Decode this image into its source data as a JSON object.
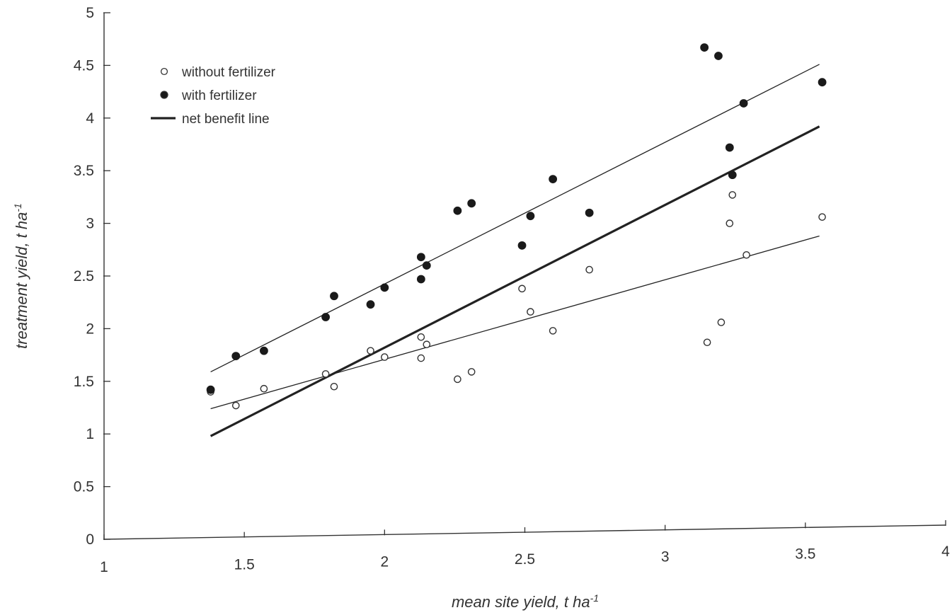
{
  "chart_data": {
    "type": "scatter",
    "xlabel": "mean site yield, t ha",
    "xlabel_sup": "-1",
    "ylabel": "treatment yield, t ha",
    "ylabel_sup": "-1",
    "xlim": [
      1,
      4
    ],
    "ylim": [
      0,
      5
    ],
    "xticks": [
      "1",
      "1.5",
      "2",
      "2.5",
      "3",
      "3.5",
      "4"
    ],
    "yticks": [
      "0",
      "0.5",
      "1",
      "1.5",
      "2",
      "2.5",
      "3",
      "3.5",
      "4",
      "4.5",
      "5"
    ],
    "grid": false,
    "legend_position": "top-left",
    "series": [
      {
        "name": "without fertilizer",
        "marker": "open-circle",
        "color": "#333333",
        "points": [
          [
            1.38,
            1.4
          ],
          [
            1.47,
            1.27
          ],
          [
            1.57,
            1.43
          ],
          [
            1.79,
            1.57
          ],
          [
            1.82,
            1.45
          ],
          [
            1.95,
            1.79
          ],
          [
            2.0,
            1.73
          ],
          [
            2.13,
            1.72
          ],
          [
            2.13,
            1.92
          ],
          [
            2.15,
            1.85
          ],
          [
            2.26,
            1.52
          ],
          [
            2.31,
            1.59
          ],
          [
            2.49,
            2.38
          ],
          [
            2.52,
            2.16
          ],
          [
            2.6,
            1.98
          ],
          [
            2.73,
            2.56
          ],
          [
            3.15,
            1.87
          ],
          [
            3.2,
            2.06
          ],
          [
            3.23,
            3.0
          ],
          [
            3.24,
            3.27
          ],
          [
            3.29,
            2.7
          ],
          [
            3.56,
            3.06
          ]
        ]
      },
      {
        "name": "with fertilizer",
        "marker": "filled-circle",
        "color": "#1a1a1a",
        "points": [
          [
            1.38,
            1.42
          ],
          [
            1.47,
            1.74
          ],
          [
            1.57,
            1.79
          ],
          [
            1.79,
            2.11
          ],
          [
            1.82,
            2.31
          ],
          [
            1.95,
            2.23
          ],
          [
            2.0,
            2.39
          ],
          [
            2.13,
            2.47
          ],
          [
            2.13,
            2.68
          ],
          [
            2.15,
            2.6
          ],
          [
            2.26,
            3.12
          ],
          [
            2.31,
            3.19
          ],
          [
            2.49,
            2.79
          ],
          [
            2.52,
            3.07
          ],
          [
            2.6,
            3.42
          ],
          [
            2.73,
            3.1
          ],
          [
            3.14,
            4.67
          ],
          [
            3.19,
            4.59
          ],
          [
            3.23,
            3.72
          ],
          [
            3.24,
            3.46
          ],
          [
            3.28,
            4.14
          ],
          [
            3.56,
            4.34
          ]
        ]
      }
    ],
    "lines": [
      {
        "name": "",
        "from": [
          1.38,
          1.59
        ],
        "to": [
          3.55,
          4.51
        ],
        "stroke": "thin"
      },
      {
        "name": "",
        "from": [
          1.38,
          1.24
        ],
        "to": [
          3.55,
          2.88
        ],
        "stroke": "thin"
      },
      {
        "name": "net benefit line",
        "from": [
          1.38,
          0.98
        ],
        "to": [
          3.55,
          3.92
        ],
        "stroke": "thick"
      }
    ],
    "legend": [
      {
        "label": "without fertilizer",
        "marker": "open-circle"
      },
      {
        "label": "with fertilizer",
        "marker": "filled-circle"
      },
      {
        "label": "net benefit line",
        "marker": "thick-line"
      }
    ]
  }
}
